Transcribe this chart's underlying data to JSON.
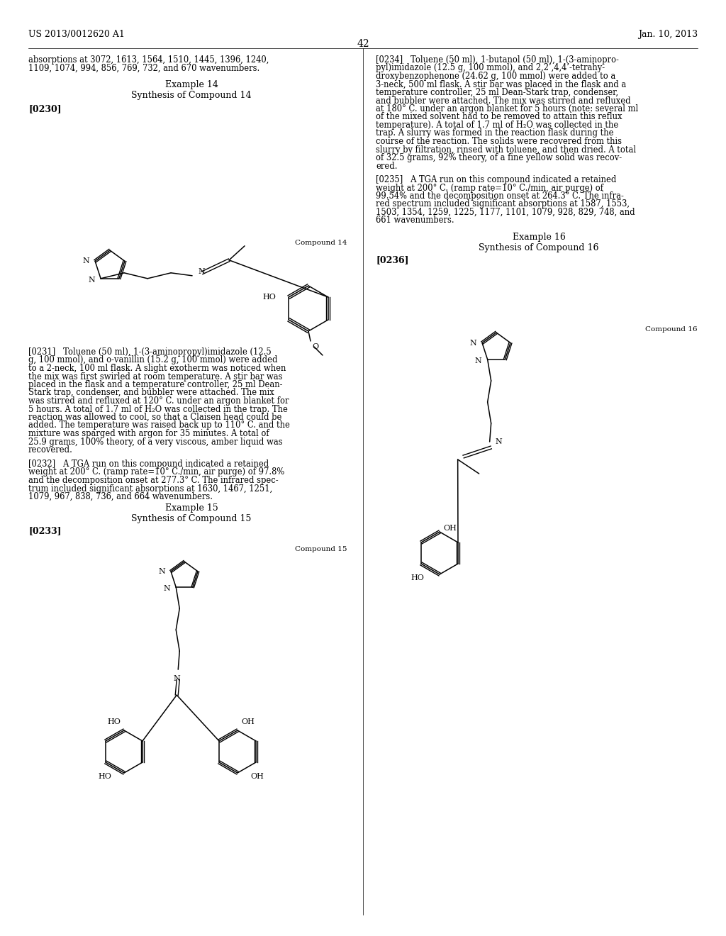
{
  "background_color": "#ffffff",
  "header_left": "US 2013/0012620 A1",
  "header_right": "Jan. 10, 2013",
  "page_number": "42"
}
